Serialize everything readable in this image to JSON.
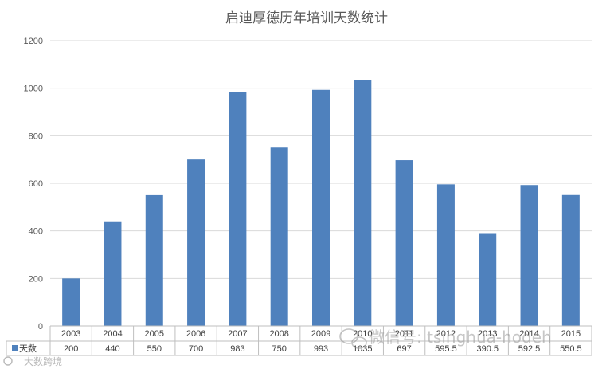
{
  "chart_data": {
    "type": "bar",
    "title": "启迪厚德历年培训天数统计",
    "categories": [
      "2003",
      "2004",
      "2005",
      "2006",
      "2007",
      "2008",
      "2009",
      "2010",
      "2011",
      "2012",
      "2013",
      "2014",
      "2015"
    ],
    "series": [
      {
        "name": "天数",
        "values": [
          200,
          440,
          550,
          700,
          983,
          750,
          993,
          1035,
          697,
          595.5,
          390.5,
          592.5,
          550.5
        ],
        "labels": [
          "200",
          "440",
          "550",
          "700",
          "983",
          "750",
          "993",
          "1035",
          "697",
          "595.5",
          "390.5",
          "592.5",
          "550.5"
        ],
        "color": "#4f81bd"
      }
    ],
    "ylim": [
      0,
      1200
    ],
    "yticks": [
      0,
      200,
      400,
      600,
      800,
      1000,
      1200
    ],
    "grid": true,
    "legend": "data-table",
    "data_table": true
  },
  "watermark": {
    "main": "微信号: tsinghua-hodeh",
    "corner": "大数跨境"
  },
  "colors": {
    "bar": "#4f81bd",
    "grid": "#d9d9d9",
    "text": "#595959"
  }
}
